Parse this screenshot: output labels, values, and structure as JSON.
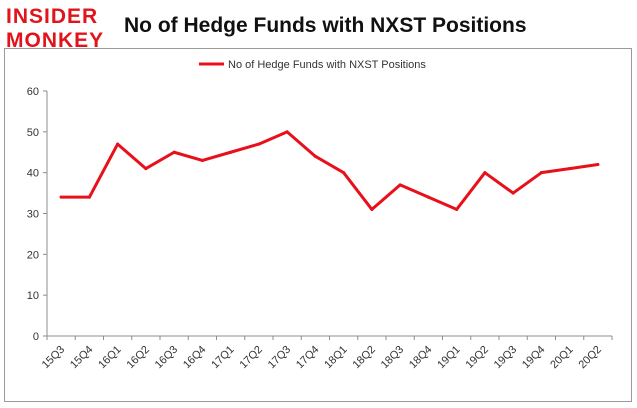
{
  "logo": {
    "line1": "INSIDER",
    "line2": "MONKEY"
  },
  "chart_data": {
    "type": "line",
    "title": "No of Hedge Funds with NXST Positions",
    "xlabel": "",
    "ylabel": "",
    "categories": [
      "15Q3",
      "15Q4",
      "16Q1",
      "16Q2",
      "16Q3",
      "16Q4",
      "17Q1",
      "17Q2",
      "17Q3",
      "17Q4",
      "18Q1",
      "18Q2",
      "18Q3",
      "18Q4",
      "19Q1",
      "19Q2",
      "19Q3",
      "19Q4",
      "20Q1",
      "20Q2"
    ],
    "series": [
      {
        "name": "No of Hedge Funds with NXST Positions",
        "color": "#e8101a",
        "values": [
          34,
          34,
          47,
          41,
          45,
          43,
          45,
          47,
          50,
          44,
          40,
          31,
          37,
          34,
          31,
          40,
          35,
          40,
          41,
          42
        ]
      }
    ],
    "ylim": [
      0,
      60
    ],
    "yticks": [
      0,
      10,
      20,
      30,
      40,
      50,
      60
    ],
    "grid": false,
    "legend": "top-center"
  }
}
